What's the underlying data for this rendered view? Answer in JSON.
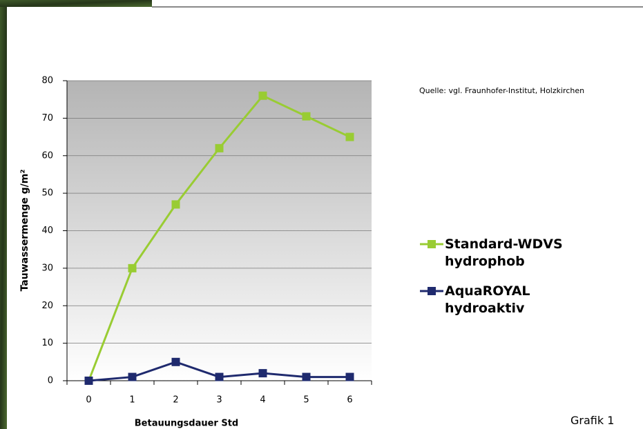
{
  "chart_data": {
    "type": "line",
    "source": "Quelle: vgl. Fraunhofer-Institut, Holzkirchen",
    "caption": "Grafik 1",
    "x_label": "Betauungsdauer Std",
    "y_label": "Tauwassermenge g/m²",
    "categories": [
      "0",
      "1",
      "2",
      "3",
      "4",
      "5",
      "6"
    ],
    "series": [
      {
        "name": "Standard-WDVS hydrophob",
        "color": "#99cc33",
        "values": [
          0,
          30,
          47,
          62,
          76,
          70.5,
          65
        ]
      },
      {
        "name": "AquaROYAL hydroaktiv",
        "color": "#1f2a6e",
        "values": [
          0,
          1,
          5,
          1,
          2,
          1,
          1
        ]
      }
    ],
    "ylim": [
      0,
      80
    ],
    "yticks": [
      0,
      10,
      20,
      30,
      40,
      50,
      60,
      70,
      80
    ],
    "grid": true
  }
}
